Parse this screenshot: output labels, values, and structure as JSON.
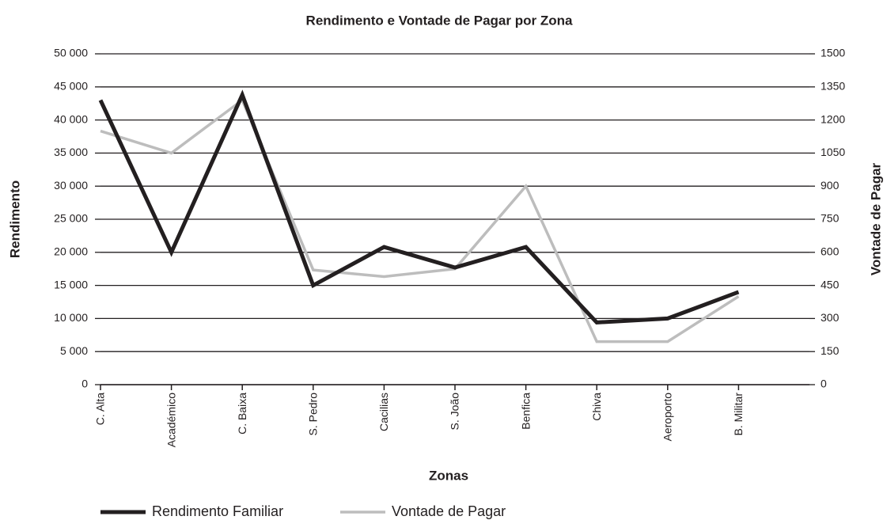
{
  "chart_data": {
    "type": "line",
    "title": "Rendimento e Vontade de Pagar por Zona",
    "xlabel": "Zonas",
    "ylabel": "Rendimento",
    "y2label": "Vontade de Pagar",
    "categories": [
      "C. Alta",
      "Académico",
      "C. Baixa",
      "S. Pedro",
      "Cacilias",
      "S. João",
      "Benfica",
      "Chiva",
      "Aeroporto",
      "B. Militar"
    ],
    "series": [
      {
        "name": "Rendimento Familiar",
        "color": "#231f20",
        "axis": "y",
        "values": [
          43000,
          20000,
          43800,
          15000,
          20800,
          17700,
          20800,
          9400,
          10000,
          14000
        ]
      },
      {
        "name": "Vontade de Pagar",
        "color": "#bdbdbd",
        "axis": "y2",
        "values": [
          1150,
          1050,
          1290,
          520,
          490,
          525,
          900,
          195,
          195,
          400
        ]
      }
    ],
    "ylim": [
      0,
      50000
    ],
    "yticks": [
      0,
      {
        "value": 5000,
        "label": "5 000"
      },
      {
        "value": 10000,
        "label": "10 000"
      },
      {
        "value": 15000,
        "label": "15 000"
      },
      {
        "value": 20000,
        "label": "20 000"
      },
      {
        "value": 25000,
        "label": "25 000"
      },
      {
        "value": 30000,
        "label": "30 000"
      },
      {
        "value": 35000,
        "label": "35 000"
      },
      {
        "value": 40000,
        "label": "40 000"
      },
      {
        "value": 45000,
        "label": "45 000"
      },
      {
        "value": 50000,
        "label": "50 000"
      }
    ],
    "y2lim": [
      0,
      1500
    ],
    "y2ticks": [
      0,
      150,
      300,
      450,
      600,
      750,
      900,
      1050,
      1200,
      1350,
      1500
    ],
    "grid": true,
    "legend": "bottom"
  }
}
